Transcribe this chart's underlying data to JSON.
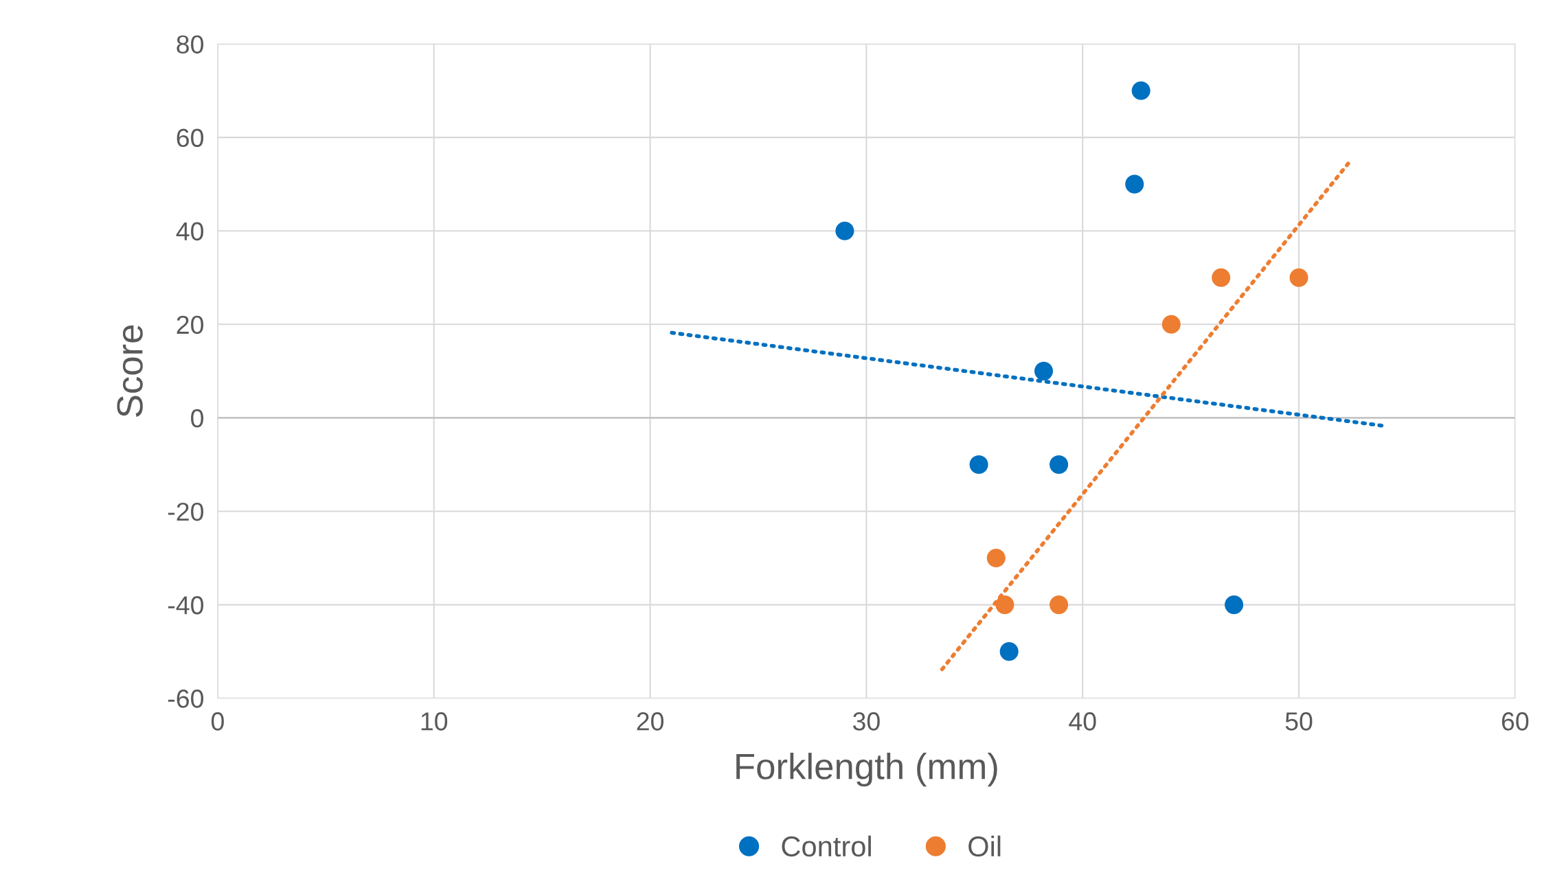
{
  "chart_data": {
    "type": "scatter",
    "xlabel": "Forklength (mm)",
    "ylabel": "Score",
    "xlim": [
      0,
      60
    ],
    "xticks": [
      0,
      10,
      20,
      30,
      40,
      50,
      60
    ],
    "ylim": [
      -60,
      80
    ],
    "yticks": [
      -60,
      -40,
      -20,
      0,
      20,
      40,
      60,
      80
    ],
    "grid": true,
    "legend": "bottom",
    "marker": "circle",
    "series": [
      {
        "name": "Control",
        "color": "#0070c0",
        "x": [
          29.0,
          42.7,
          42.4,
          38.2,
          35.2,
          38.9,
          47.0,
          36.6
        ],
        "values": [
          40,
          70,
          50,
          10,
          -10,
          -10,
          -40,
          -50
        ]
      },
      {
        "name": "Oil",
        "color": "#ed7d31",
        "x": [
          44.1,
          46.4,
          50.0,
          36.0,
          36.4,
          38.9
        ],
        "values": [
          20,
          30,
          30,
          -30,
          -40,
          -40
        ]
      },
      {
        "type": "line",
        "color": "#0070c0",
        "line_style": "dotted",
        "marker": "none",
        "x": [
          21.0,
          53.9
        ],
        "values": [
          18.2,
          -1.7
        ]
      },
      {
        "type": "line",
        "color": "#ed7d31",
        "line_style": "dotted",
        "marker": "none",
        "x": [
          33.5,
          52.4
        ],
        "values": [
          -53.8,
          55.1
        ]
      }
    ]
  }
}
